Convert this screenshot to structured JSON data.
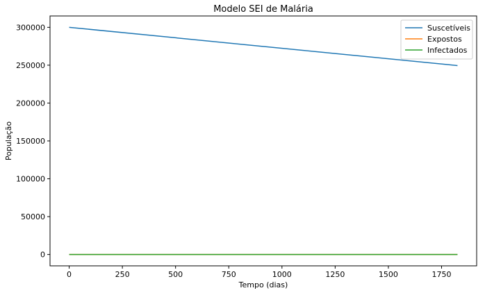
{
  "chart_data": {
    "type": "line",
    "title": "Modelo SEI de Malária",
    "xlabel": "Tempo (dias)",
    "ylabel": "População",
    "xlim": [
      -90,
      1915
    ],
    "ylim": [
      -15000,
      315000
    ],
    "xticks": [
      0,
      250,
      500,
      750,
      1000,
      1250,
      1500,
      1750
    ],
    "yticks": [
      0,
      50000,
      100000,
      150000,
      200000,
      250000,
      300000
    ],
    "grid": false,
    "legend_position": "top-right",
    "series": [
      {
        "name": "Suscetíveis",
        "color": "#1f77b4",
        "x": [
          0,
          1825
        ],
        "y": [
          300000,
          249500
        ]
      },
      {
        "name": "Expostos",
        "color": "#ff7f0e",
        "x": [
          0,
          1825
        ],
        "y": [
          0,
          0
        ]
      },
      {
        "name": "Infectados",
        "color": "#2ca02c",
        "x": [
          0,
          1825
        ],
        "y": [
          0,
          0
        ]
      }
    ]
  }
}
